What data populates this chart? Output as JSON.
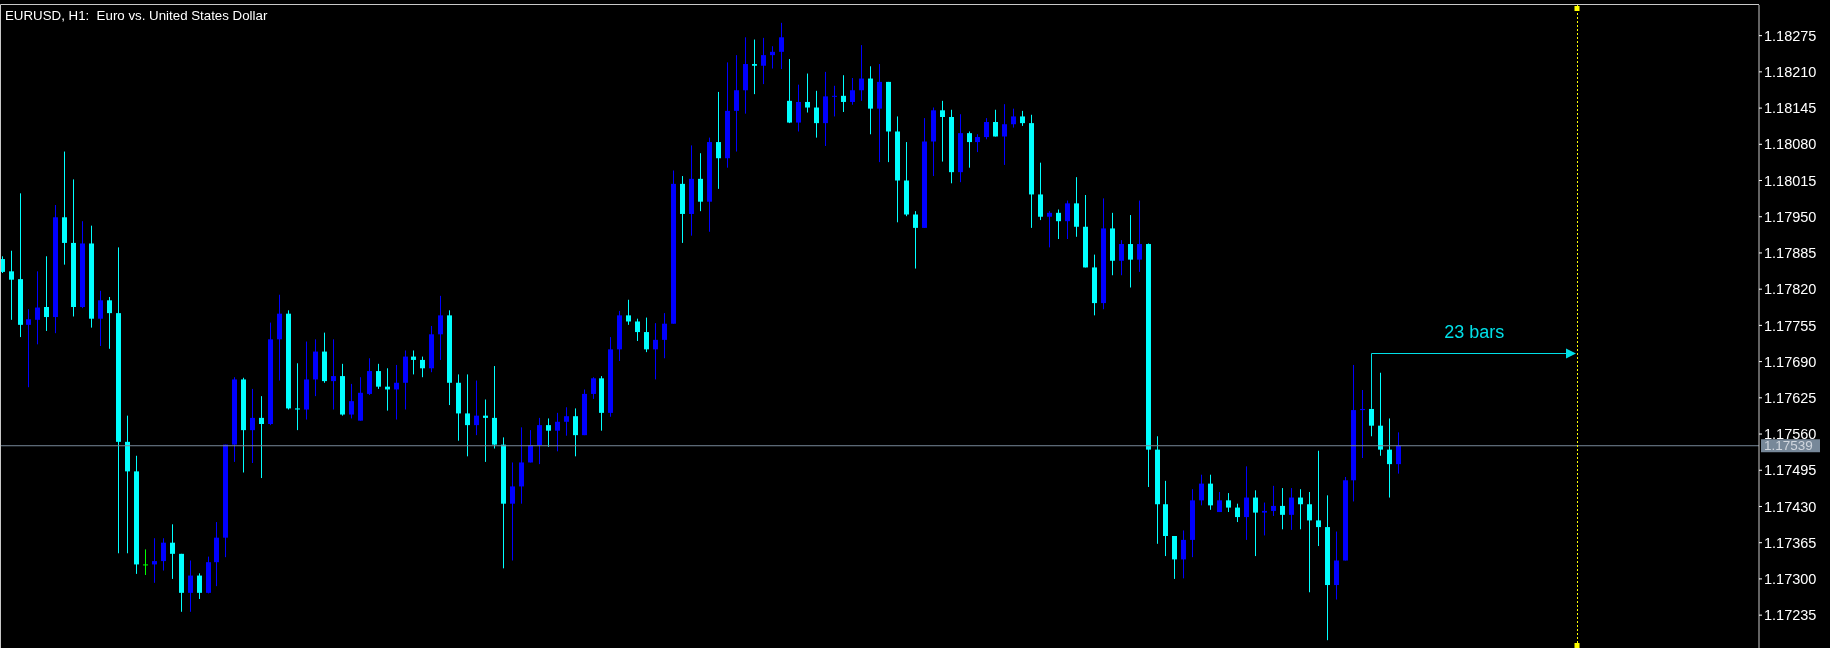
{
  "chart_data": {
    "type": "candlestick",
    "title": "EURUSD, H1:  Euro vs. United States Dollar",
    "categories": [
      null,
      null,
      null,
      null,
      null,
      null,
      null,
      null,
      null,
      null,
      null,
      null,
      null,
      null,
      null,
      null,
      null,
      null,
      null,
      null,
      null,
      null,
      null,
      null,
      null,
      null,
      null,
      null,
      null,
      null,
      null,
      null,
      null,
      null,
      null,
      null,
      null,
      null,
      null,
      null,
      null,
      null,
      null,
      null,
      null,
      null,
      null,
      null,
      null,
      null,
      null,
      null,
      null,
      null,
      null,
      null,
      null,
      null,
      null,
      null,
      null,
      null,
      null,
      null,
      null,
      null,
      null,
      null,
      null,
      null,
      null,
      null,
      null,
      null,
      null,
      null,
      null,
      null,
      null,
      null,
      null,
      null,
      null,
      null,
      null,
      null,
      null,
      null,
      null,
      null,
      null,
      null,
      null,
      null,
      null,
      null,
      null,
      null,
      null,
      null,
      null,
      null,
      null,
      null,
      null,
      null,
      null,
      null,
      null,
      null,
      null,
      null,
      null,
      null,
      null,
      null,
      null,
      null,
      null,
      null,
      null,
      null,
      null,
      null,
      null,
      null,
      null,
      null,
      null,
      null,
      null,
      null,
      null,
      null,
      null,
      null,
      null,
      null,
      null,
      null,
      null,
      null,
      null,
      null,
      null,
      null,
      null,
      null,
      null,
      null,
      null,
      null,
      null,
      null,
      null,
      null,
      null,
      null,
      null,
      null,
      null,
      null,
      null,
      null,
      null,
      null,
      null,
      null,
      null,
      null,
      null,
      null,
      null,
      null,
      null,
      null,
      null,
      null,
      null,
      null,
      null,
      null,
      null,
      null,
      null,
      null,
      null,
      null,
      null,
      null,
      null,
      null,
      null,
      null,
      null,
      null,
      null
    ],
    "ohlc": [
      [
        1.17874,
        1.17879,
        1.17849,
        1.17851
      ],
      [
        1.17852,
        1.17889,
        1.17765,
        1.17837
      ],
      [
        1.17838,
        1.17992,
        1.17734,
        1.17756
      ],
      [
        1.17756,
        1.17784,
        1.17644,
        1.17766
      ],
      [
        1.17765,
        1.17852,
        1.17721,
        1.17787
      ],
      [
        1.17788,
        1.17879,
        1.17745,
        1.1777
      ],
      [
        1.1777,
        1.17971,
        1.17741,
        1.17949
      ],
      [
        1.17949,
        1.18067,
        1.17864,
        1.17903
      ],
      [
        1.17903,
        1.18017,
        1.17771,
        1.17788
      ],
      [
        1.17788,
        1.17942,
        1.17786,
        1.17902
      ],
      [
        1.17902,
        1.17934,
        1.17751,
        1.17767
      ],
      [
        1.17767,
        1.17817,
        1.17718,
        1.178
      ],
      [
        1.178,
        1.17806,
        1.17713,
        1.17777
      ],
      [
        1.17777,
        1.17895,
        1.17346,
        1.17546
      ],
      [
        1.17546,
        1.17593,
        1.17346,
        1.17493
      ],
      [
        1.17493,
        1.17521,
        1.17309,
        1.17326
      ],
      [
        1.17326,
        1.17353,
        1.17307,
        1.17326
      ],
      [
        1.17326,
        1.17373,
        1.17293,
        1.17332
      ],
      [
        1.17332,
        1.17373,
        1.17315,
        1.17365
      ],
      [
        1.17365,
        1.17398,
        1.173,
        1.17345
      ],
      [
        1.17345,
        1.17345,
        1.17241,
        1.17275
      ],
      [
        1.17275,
        1.17333,
        1.17241,
        1.17306
      ],
      [
        1.17306,
        1.1731,
        1.17264,
        1.17275
      ],
      [
        1.17275,
        1.1734,
        1.17274,
        1.1733
      ],
      [
        1.1733,
        1.17402,
        1.17287,
        1.17374
      ],
      [
        1.17374,
        1.17541,
        1.17339,
        1.17541
      ],
      [
        1.17541,
        1.17662,
        1.1751,
        1.17658
      ],
      [
        1.17658,
        1.17661,
        1.17491,
        1.17567
      ],
      [
        1.17567,
        1.17641,
        1.17508,
        1.17589
      ],
      [
        1.17589,
        1.17628,
        1.17481,
        1.17578
      ],
      [
        1.17578,
        1.1776,
        1.17576,
        1.1773
      ],
      [
        1.1773,
        1.1781,
        1.17656,
        1.17776
      ],
      [
        1.17776,
        1.17782,
        1.17604,
        1.17606
      ],
      [
        1.17606,
        1.17687,
        1.17567,
        1.17604
      ],
      [
        1.17604,
        1.17726,
        1.17586,
        1.17658
      ],
      [
        1.17658,
        1.1773,
        1.17628,
        1.17708
      ],
      [
        1.17708,
        1.17742,
        1.17652,
        1.17655
      ],
      [
        1.17655,
        1.1773,
        1.17604,
        1.17664
      ],
      [
        1.17664,
        1.17686,
        1.17593,
        1.17595
      ],
      [
        1.17595,
        1.1765,
        1.17588,
        1.17619
      ],
      [
        1.17584,
        1.17662,
        1.17584,
        1.17634
      ],
      [
        1.17632,
        1.17696,
        1.1763,
        1.17673
      ],
      [
        1.17673,
        1.17686,
        1.17641,
        1.17645
      ],
      [
        1.17645,
        1.17678,
        1.17602,
        1.1764
      ],
      [
        1.1764,
        1.17684,
        1.17586,
        1.17652
      ],
      [
        1.17652,
        1.1771,
        1.17604,
        1.17699
      ],
      [
        1.17699,
        1.1771,
        1.17667,
        1.17693
      ],
      [
        1.17693,
        1.17699,
        1.17662,
        1.17678
      ],
      [
        1.17678,
        1.17754,
        1.17671,
        1.17739
      ],
      [
        1.17739,
        1.17808,
        1.17693,
        1.17773
      ],
      [
        1.17773,
        1.17782,
        1.17612,
        1.17652
      ],
      [
        1.17652,
        1.17667,
        1.17548,
        1.17597
      ],
      [
        1.17597,
        1.17667,
        1.1752,
        1.17576
      ],
      [
        1.17576,
        1.17656,
        1.17558,
        1.17593
      ],
      [
        1.17593,
        1.17622,
        1.1751,
        1.17589
      ],
      [
        1.17589,
        1.17682,
        1.17534,
        1.17541
      ],
      [
        1.17541,
        1.17554,
        1.17319,
        1.17435
      ],
      [
        1.17435,
        1.17509,
        1.17333,
        1.17466
      ],
      [
        1.17466,
        1.17572,
        1.17435,
        1.17509
      ],
      [
        1.17509,
        1.17567,
        1.17509,
        1.1754
      ],
      [
        1.1754,
        1.17589,
        1.17506,
        1.17576
      ],
      [
        1.17576,
        1.17588,
        1.17537,
        1.17566
      ],
      [
        1.17566,
        1.17598,
        1.17529,
        1.17582
      ],
      [
        1.17582,
        1.17608,
        1.17557,
        1.17592
      ],
      [
        1.17592,
        1.17606,
        1.1752,
        1.17558
      ],
      [
        1.17558,
        1.1764,
        1.17558,
        1.17632
      ],
      [
        1.17632,
        1.17662,
        1.17623,
        1.1766
      ],
      [
        1.1766,
        1.17664,
        1.17566,
        1.17598
      ],
      [
        1.17598,
        1.17734,
        1.17591,
        1.17712
      ],
      [
        1.17712,
        1.17781,
        1.17691,
        1.17773
      ],
      [
        1.17773,
        1.17801,
        1.17756,
        1.17762
      ],
      [
        1.17762,
        1.17767,
        1.17727,
        1.17743
      ],
      [
        1.17743,
        1.17769,
        1.17707,
        1.17712
      ],
      [
        1.17712,
        1.17759,
        1.17658,
        1.17729
      ],
      [
        1.17729,
        1.17777,
        1.17696,
        1.17758
      ],
      [
        1.17758,
        1.18033,
        1.17758,
        1.18009
      ],
      [
        1.18009,
        1.18023,
        1.17903,
        1.17955
      ],
      [
        1.17955,
        1.18078,
        1.17916,
        1.18018
      ],
      [
        1.18018,
        1.18064,
        1.1796,
        1.17977
      ],
      [
        1.17977,
        1.18092,
        1.17923,
        1.18084
      ],
      [
        1.18084,
        1.18174,
        1.18,
        1.18055
      ],
      [
        1.18055,
        1.18227,
        1.18038,
        1.1814
      ],
      [
        1.1814,
        1.1824,
        1.18067,
        1.18177
      ],
      [
        1.18177,
        1.18272,
        1.18135,
        1.18224
      ],
      [
        1.18224,
        1.18268,
        1.1817,
        1.18221
      ],
      [
        1.18221,
        1.18271,
        1.18188,
        1.1824
      ],
      [
        1.1824,
        1.18256,
        1.18216,
        1.18246
      ],
      [
        1.18246,
        1.18298,
        1.18215,
        1.18272
      ],
      [
        1.18158,
        1.18233,
        1.18118,
        1.18119
      ],
      [
        1.18119,
        1.18187,
        1.18103,
        1.18156
      ],
      [
        1.18156,
        1.18207,
        1.18137,
        1.18146
      ],
      [
        1.18146,
        1.18176,
        1.18092,
        1.18118
      ],
      [
        1.18118,
        1.1821,
        1.18077,
        1.18166
      ],
      [
        1.18166,
        1.18185,
        1.1813,
        1.18167
      ],
      [
        1.18167,
        1.18204,
        1.18138,
        1.18156
      ],
      [
        1.18156,
        1.18199,
        1.18151,
        1.18177
      ],
      [
        1.18177,
        1.18258,
        1.18158,
        1.18198
      ],
      [
        1.18198,
        1.1822,
        1.18098,
        1.18144
      ],
      [
        1.18144,
        1.18224,
        1.18048,
        1.18192
      ],
      [
        1.18192,
        1.18192,
        1.18048,
        1.18103
      ],
      [
        1.18103,
        1.1813,
        1.1794,
        1.18015
      ],
      [
        1.18015,
        1.18084,
        1.17951,
        1.17954
      ],
      [
        1.17954,
        1.1796,
        1.17857,
        1.1793
      ],
      [
        1.1793,
        1.18127,
        1.1793,
        1.18085
      ],
      [
        1.18085,
        1.18146,
        1.18023,
        1.18141
      ],
      [
        1.18141,
        1.18158,
        1.18049,
        1.18129
      ],
      [
        1.18129,
        1.18142,
        1.1801,
        1.1803
      ],
      [
        1.1803,
        1.18134,
        1.18012,
        1.181
      ],
      [
        1.181,
        1.18103,
        1.18038,
        1.18084
      ],
      [
        1.18084,
        1.18098,
        1.18066,
        1.18093
      ],
      [
        1.18093,
        1.18127,
        1.18089,
        1.1812
      ],
      [
        1.1812,
        1.18142,
        1.18094,
        1.18094
      ],
      [
        1.18094,
        1.18152,
        1.18043,
        1.18116
      ],
      [
        1.18116,
        1.18144,
        1.1811,
        1.1813
      ],
      [
        1.1813,
        1.1814,
        1.18113,
        1.18118
      ],
      [
        1.18118,
        1.18133,
        1.1793,
        1.1799
      ],
      [
        1.1799,
        1.18047,
        1.17944,
        1.1795
      ],
      [
        1.1795,
        1.1796,
        1.17895,
        1.17957
      ],
      [
        1.17957,
        1.17963,
        1.1791,
        1.17942
      ],
      [
        1.17942,
        1.17979,
        1.1791,
        1.17974
      ],
      [
        1.17974,
        1.18021,
        1.17914,
        1.17932
      ],
      [
        1.17932,
        1.17989,
        1.17859,
        1.17859
      ],
      [
        1.17859,
        1.17882,
        1.17773,
        1.17795
      ],
      [
        1.17795,
        1.17983,
        1.17784,
        1.17929
      ],
      [
        1.17929,
        1.17957,
        1.17845,
        1.17871
      ],
      [
        1.17871,
        1.17908,
        1.17845,
        1.17901
      ],
      [
        1.17901,
        1.17953,
        1.17823,
        1.17873
      ],
      [
        1.17873,
        1.17979,
        1.17851,
        1.17901
      ],
      [
        1.17901,
        1.17902,
        1.17465,
        1.17532
      ],
      [
        1.17532,
        1.17556,
        1.17363,
        1.17434
      ],
      [
        1.17434,
        1.17476,
        1.17341,
        1.17377
      ],
      [
        1.17377,
        1.17377,
        1.173,
        1.17335
      ],
      [
        1.17335,
        1.17387,
        1.17301,
        1.1737
      ],
      [
        1.1737,
        1.17461,
        1.17339,
        1.17441
      ],
      [
        1.17441,
        1.17487,
        1.17432,
        1.17471
      ],
      [
        1.17471,
        1.17487,
        1.17424,
        1.17432
      ],
      [
        1.1742,
        1.17456,
        1.1742,
        1.17441
      ],
      [
        1.17441,
        1.17454,
        1.1742,
        1.17428
      ],
      [
        1.17428,
        1.17435,
        1.17402,
        1.17411
      ],
      [
        1.17411,
        1.17502,
        1.1737,
        1.17446
      ],
      [
        1.17446,
        1.17459,
        1.17341,
        1.17419
      ],
      [
        1.17419,
        1.17437,
        1.17378,
        1.17422
      ],
      [
        1.17422,
        1.17467,
        1.17413,
        1.17431
      ],
      [
        1.17431,
        1.17463,
        1.17389,
        1.17415
      ],
      [
        1.17415,
        1.17463,
        1.17388,
        1.17446
      ],
      [
        1.17446,
        1.17461,
        1.17389,
        1.17434
      ],
      [
        1.17434,
        1.17456,
        1.17276,
        1.17405
      ],
      [
        1.17405,
        1.1753,
        1.17359,
        1.17393
      ],
      [
        1.17393,
        1.1745,
        1.1719,
        1.17289
      ],
      [
        1.17289,
        1.17385,
        1.17263,
        1.17333
      ],
      [
        1.17333,
        1.17483,
        1.17333,
        1.17477
      ],
      [
        1.17477,
        1.17684,
        1.17439,
        1.17603
      ],
      [
        1.17603,
        1.17639,
        1.17517,
        1.17605
      ],
      [
        1.17605,
        1.17606,
        1.17556,
        1.17575
      ],
      [
        1.17575,
        1.1767,
        1.17521,
        1.17532
      ],
      [
        1.17532,
        1.17588,
        1.17446,
        1.17506
      ],
      [
        1.17506,
        1.17563,
        1.17489,
        1.17539
      ],
      null,
      null,
      null,
      null,
      null,
      null,
      null,
      null,
      null,
      null,
      null,
      null,
      null,
      null,
      null,
      null,
      null,
      null,
      null,
      null,
      null,
      null,
      null,
      null,
      null,
      null,
      null,
      null,
      null,
      null,
      null,
      null,
      null,
      null,
      null,
      null,
      null,
      null,
      null,
      null
    ],
    "colors": [
      "#00ffff",
      "#00ffff",
      "#00ffff",
      "#0000ff",
      "#0000ff",
      "#00ffff",
      "#0000ff",
      "#00ffff",
      "#00ffff",
      "#0000ff",
      "#00ffff",
      "#0000ff",
      "#00ffff",
      "#00ffff",
      "#00ffff",
      "#00ffff",
      "#00ff00",
      "#0000ff",
      "#0000ff",
      "#00ffff",
      "#00ffff",
      "#0000ff",
      "#00ffff",
      "#0000ff",
      "#0000ff",
      "#0000ff",
      "#0000ff",
      "#00ffff",
      "#0000ff",
      "#00ffff",
      "#0000ff",
      "#0000ff",
      "#00ffff",
      "#00ffff",
      "#0000ff",
      "#0000ff",
      "#00ffff",
      "#0000ff",
      "#00ffff",
      "#0000ff",
      "#0000ff",
      "#0000ff",
      "#00ffff",
      "#00ffff",
      "#0000ff",
      "#0000ff",
      "#00ffff",
      "#00ffff",
      "#0000ff",
      "#0000ff",
      "#00ffff",
      "#00ffff",
      "#00ffff",
      "#0000ff",
      "#00ffff",
      "#00ffff",
      "#00ffff",
      "#0000ff",
      "#0000ff",
      "#0000ff",
      "#0000ff",
      "#00ffff",
      "#0000ff",
      "#0000ff",
      "#00ffff",
      "#0000ff",
      "#0000ff",
      "#00ffff",
      "#0000ff",
      "#0000ff",
      "#00ffff",
      "#00ffff",
      "#00ffff",
      "#0000ff",
      "#0000ff",
      "#0000ff",
      "#00ffff",
      "#0000ff",
      "#00ffff",
      "#0000ff",
      "#00ffff",
      "#0000ff",
      "#0000ff",
      "#0000ff",
      "#00ffff",
      "#0000ff",
      "#0000ff",
      "#0000ff",
      "#00ffff",
      "#0000ff",
      "#00ffff",
      "#00ffff",
      "#0000ff",
      "#0000ff",
      "#00ffff",
      "#0000ff",
      "#0000ff",
      "#00ffff",
      "#0000ff",
      "#00ffff",
      "#00ffff",
      "#00ffff",
      "#00ffff",
      "#0000ff",
      "#0000ff",
      "#00ffff",
      "#00ffff",
      "#0000ff",
      "#00ffff",
      "#0000ff",
      "#0000ff",
      "#00ffff",
      "#0000ff",
      "#0000ff",
      "#00ffff",
      "#00ffff",
      "#00ffff",
      "#0000ff",
      "#00ffff",
      "#0000ff",
      "#00ffff",
      "#00ffff",
      "#00ffff",
      "#0000ff",
      "#00ffff",
      "#0000ff",
      "#00ffff",
      "#0000ff",
      "#00ffff",
      "#00ffff",
      "#00ffff",
      "#00ffff",
      "#0000ff",
      "#0000ff",
      "#0000ff",
      "#00ffff",
      "#0000ff",
      "#00ffff",
      "#00ffff",
      "#0000ff",
      "#00ffff",
      "#0000ff",
      "#0000ff",
      "#00ffff",
      "#0000ff",
      "#00ffff",
      "#00ffff",
      "#00ffff",
      "#00ffff",
      "#0000ff",
      "#0000ff",
      "#0000ff",
      "#0000ff",
      "#00ffff",
      "#00ffff",
      "#00ffff",
      "#0000ff",
      null,
      null,
      null,
      null,
      null,
      null,
      null,
      null,
      null,
      null,
      null,
      null,
      null,
      null,
      null,
      null,
      null,
      null,
      null,
      null,
      null,
      null,
      null,
      null,
      null,
      null,
      null,
      null,
      null,
      null,
      null,
      null,
      null,
      null,
      null,
      null,
      null,
      null,
      null,
      null
    ],
    "ylim": [
      1.17176,
      1.1833
    ],
    "yticks": [
      1.18275,
      {
        "value": 1.1821,
        "label": "1.18210"
      },
      1.18145,
      {
        "value": 1.1808,
        "label": "1.18080"
      },
      1.18015,
      {
        "value": 1.1795,
        "label": "1.17950"
      },
      1.17885,
      {
        "value": 1.1782,
        "label": "1.17820"
      },
      1.17755,
      {
        "value": 1.1769,
        "label": "1.17690"
      },
      1.17625,
      {
        "value": 1.1756,
        "label": "1.17560"
      },
      1.17495,
      {
        "value": 1.1743,
        "label": "1.17430"
      },
      1.17365,
      {
        "value": 1.173,
        "label": "1.17300"
      },
      1.17235
    ],
    "tick_labels": "y",
    "ref_lines": [
      {
        "axis": "y",
        "value": 1.17539,
        "label": "1.17539",
        "color": "#778899"
      }
    ],
    "annotations": [
      "23 bars"
    ]
  }
}
